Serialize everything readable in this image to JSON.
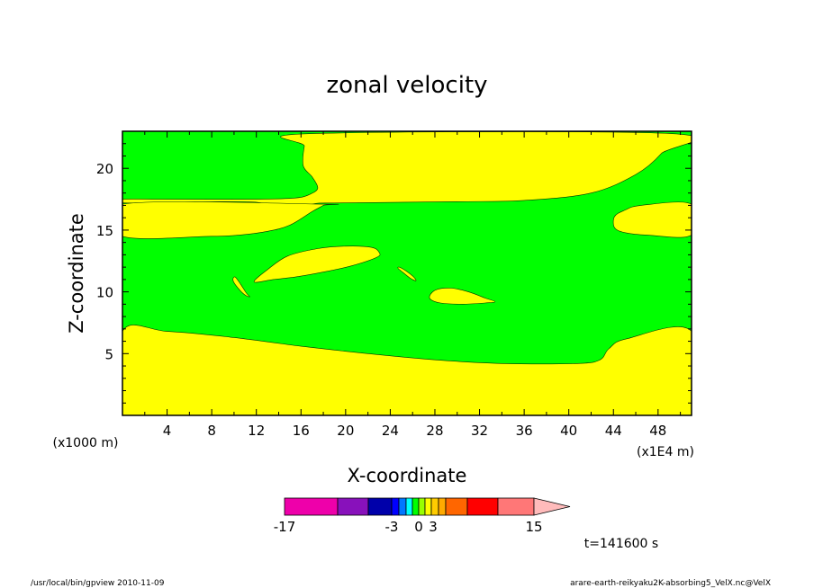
{
  "chart_data": {
    "type": "contour",
    "title": "zonal velocity",
    "xlabel": "X-coordinate",
    "ylabel": "Z-coordinate",
    "x_unit_label": "(x1E4 m)",
    "y_unit_label": "(x1000 m)",
    "xlim": [
      0,
      51
    ],
    "ylim": [
      0,
      23
    ],
    "x_ticks": [
      4,
      8,
      12,
      16,
      20,
      24,
      28,
      32,
      36,
      40,
      44,
      48
    ],
    "y_ticks": [
      5,
      10,
      15,
      20
    ],
    "fill_colors": {
      "yellow": "#ffff00",
      "green": "#00ff00"
    },
    "regions": [
      {
        "color": "yellow",
        "points": [
          [
            0,
            0
          ],
          [
            51,
            0
          ],
          [
            51,
            6.8
          ],
          [
            45.2,
            6.2
          ],
          [
            43.6,
            5.4
          ],
          [
            42.8,
            4.5
          ],
          [
            40.8,
            4.2
          ],
          [
            34,
            4.2
          ],
          [
            28,
            4.5
          ],
          [
            22,
            5
          ],
          [
            16,
            5.6
          ],
          [
            10,
            6.3
          ],
          [
            4,
            6.8
          ],
          [
            0,
            6.8
          ]
        ]
      },
      {
        "color": "yellow",
        "points": [
          [
            0,
            17.2
          ],
          [
            10,
            17.3
          ],
          [
            13,
            17.1
          ],
          [
            15.5,
            16.3
          ],
          [
            17,
            17.1
          ],
          [
            20,
            17.2
          ],
          [
            30,
            17.3
          ],
          [
            36,
            17.4
          ],
          [
            42,
            18
          ],
          [
            46,
            19.5
          ],
          [
            48.3,
            21.2
          ],
          [
            49.3,
            22.8
          ],
          [
            16.7,
            22.8
          ],
          [
            16.3,
            21.8
          ],
          [
            16.2,
            20.2
          ],
          [
            17,
            19.3
          ],
          [
            17.5,
            18.4
          ],
          [
            16.8,
            17.9
          ],
          [
            15.5,
            17.6
          ],
          [
            12,
            17.5
          ],
          [
            4,
            17.5
          ],
          [
            0,
            17.5
          ]
        ]
      },
      {
        "color": "yellow",
        "points": [
          [
            0,
            14.5
          ],
          [
            8,
            14.5
          ],
          [
            10.5,
            14.6
          ],
          [
            13,
            14.9
          ],
          [
            15,
            15.4
          ],
          [
            17,
            16.5
          ],
          [
            18,
            17.0
          ],
          [
            18,
            17.1
          ],
          [
            0,
            17.1
          ]
        ]
      },
      {
        "color": "yellow",
        "points": [
          [
            51,
            17.1
          ],
          [
            46.5,
            17
          ],
          [
            45,
            16.6
          ],
          [
            44.1,
            16.1
          ],
          [
            44.1,
            15.2
          ],
          [
            45,
            14.8
          ],
          [
            47,
            14.6
          ],
          [
            51,
            14.6
          ]
        ]
      },
      {
        "color": "yellow",
        "points": [
          [
            11.8,
            10.8
          ],
          [
            13,
            11.8
          ],
          [
            14.8,
            12.9
          ],
          [
            17.5,
            13.5
          ],
          [
            20,
            13.7
          ],
          [
            22.3,
            13.6
          ],
          [
            23,
            13.2
          ],
          [
            22.8,
            12.8
          ],
          [
            20.5,
            12.1
          ],
          [
            18,
            11.6
          ],
          [
            15.5,
            11.2
          ],
          [
            13.5,
            11
          ]
        ]
      },
      {
        "color": "yellow",
        "points": [
          [
            10.1,
            11.2
          ],
          [
            10.6,
            10.6
          ],
          [
            11.1,
            9.9
          ],
          [
            11.4,
            9.6
          ],
          [
            10.9,
            9.8
          ],
          [
            10.1,
            10.6
          ],
          [
            9.9,
            11.0
          ]
        ]
      },
      {
        "color": "yellow",
        "points": [
          [
            24.8,
            12.0
          ],
          [
            25.4,
            11.7
          ],
          [
            26.1,
            11.2
          ],
          [
            26.3,
            10.9
          ],
          [
            25.8,
            11.1
          ],
          [
            25.1,
            11.6
          ],
          [
            24.7,
            11.9
          ]
        ]
      },
      {
        "color": "yellow",
        "points": [
          [
            27.6,
            9.8
          ],
          [
            28.2,
            10.2
          ],
          [
            29.5,
            10.3
          ],
          [
            31,
            10.0
          ],
          [
            32.5,
            9.5
          ],
          [
            33.4,
            9.2
          ],
          [
            32.5,
            9.1
          ],
          [
            30.5,
            9.0
          ],
          [
            28.5,
            9.1
          ],
          [
            27.6,
            9.4
          ]
        ]
      }
    ],
    "colorbar": {
      "colors": [
        "#ee00aa",
        "#8811bb",
        "#0000aa",
        "#0000ff",
        "#0077ff",
        "#00ffff",
        "#00ff00",
        "#99ff00",
        "#ffff00",
        "#ffcc00",
        "#ffaa00",
        "#ff6600",
        "#ff0000",
        "#ff7777",
        "#ffbbbb"
      ],
      "tick_labels": [
        "-17",
        "-3",
        "0",
        "3",
        "15"
      ]
    },
    "time_label": "t=141600 s"
  },
  "footer": {
    "left": "/usr/local/bin/gpview  2010-11-09",
    "right": "arare-earth-reikyaku2K-absorbing5_VelX.nc@VelX"
  }
}
